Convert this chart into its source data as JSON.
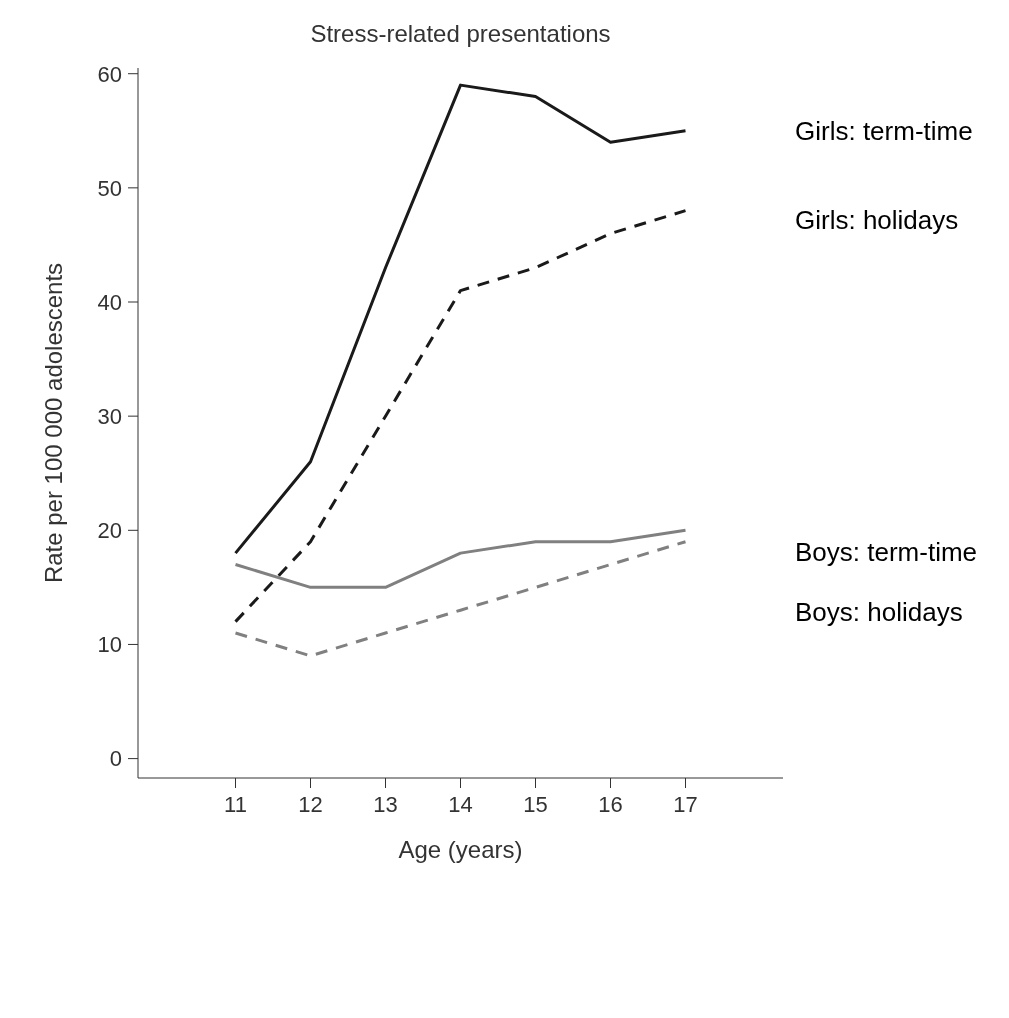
{
  "chart_data": {
    "type": "line",
    "title": "Stress-related presentations",
    "xlabel": "Age (years)",
    "ylabel": "Rate per 100 000 adolescents",
    "x": [
      11,
      12,
      13,
      14,
      15,
      16,
      17
    ],
    "xlim": [
      9.7,
      18.3
    ],
    "xticks": [
      11,
      12,
      13,
      14,
      15,
      16,
      17
    ],
    "ylim": [
      -1.7,
      60.5
    ],
    "yticks": [
      0,
      10,
      20,
      30,
      40,
      50,
      60
    ],
    "grid": false,
    "legend": false,
    "marker": "none",
    "series": [
      {
        "name": "Girls: term-time",
        "color": "#1a1a1a",
        "line_style": "solid",
        "values": [
          18,
          26,
          43,
          59,
          58,
          54,
          55
        ]
      },
      {
        "name": "Girls: holidays",
        "color": "#1a1a1a",
        "line_style": "dashed",
        "values": [
          12,
          19,
          30,
          41,
          43,
          46,
          48
        ]
      },
      {
        "name": "Boys: term-time",
        "color": "#808080",
        "line_style": "solid",
        "values": [
          17,
          15,
          15,
          18,
          19,
          19,
          20
        ]
      },
      {
        "name": "Boys: holidays",
        "color": "#808080",
        "line_style": "dashed",
        "values": [
          11,
          9,
          11,
          13,
          15,
          17,
          19
        ]
      }
    ]
  }
}
